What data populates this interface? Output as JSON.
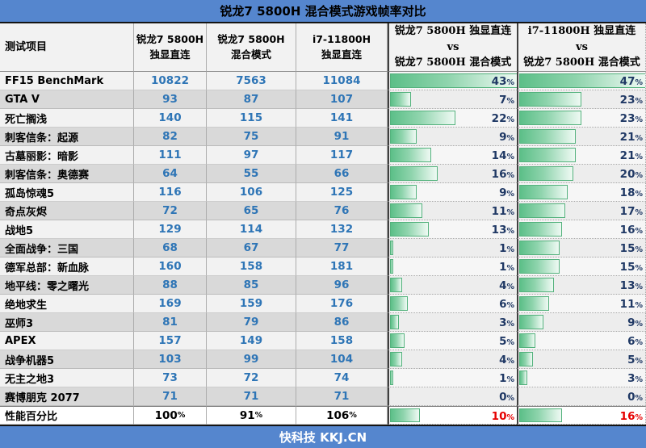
{
  "title": "锐龙7 5800H 混合模式游戏帧率对比",
  "footer": "快科技 KKJ.CN",
  "columns": [
    {
      "label": "测试项目"
    },
    {
      "label": "锐龙7 5800H\n独显直连"
    },
    {
      "label": "锐龙7 5800H\n混合模式"
    },
    {
      "label": "i7-11800H\n独显直连"
    },
    {
      "label": "锐龙7 5800H 独显直连\nvs\n锐龙7 5800H 混合模式"
    },
    {
      "label": "i7-11800H 独显直连\nvs\n锐龙7 5800H 混合模式"
    }
  ],
  "bar_scale": {
    "vs1_max": 43,
    "vs2_max": 47
  },
  "colors": {
    "accent_blue": "#5586CE",
    "value_blue": "#2E75B6",
    "percent_navy": "#1F3864",
    "percent_red": "#E60000",
    "bar_green": "#5CBF88",
    "row_alt_gray": "#D9D9D9"
  },
  "chart_data": {
    "type": "table",
    "title": "锐龙7 5800H 混合模式游戏帧率对比",
    "columns": [
      "测试项目",
      "锐龙7 5800H 独显直连",
      "锐龙7 5800H 混合模式",
      "i7-11800H 独显直连",
      "锐龙7 5800H 独显直连 vs 锐龙7 5800H 混合模式",
      "i7-11800H 独显直连 vs 锐龙7 5800H 混合模式"
    ],
    "rows": [
      {
        "name": "FF15 BenchMark",
        "direct": 10822,
        "hybrid": 7563,
        "i7": 11084,
        "vs1": 43,
        "vs2": 47
      },
      {
        "name": "GTA V",
        "direct": 93,
        "hybrid": 87,
        "i7": 107,
        "vs1": 7,
        "vs2": 23
      },
      {
        "name": "死亡搁浅",
        "direct": 140,
        "hybrid": 115,
        "i7": 141,
        "vs1": 22,
        "vs2": 23
      },
      {
        "name": "刺客信条：起源",
        "direct": 82,
        "hybrid": 75,
        "i7": 91,
        "vs1": 9,
        "vs2": 21
      },
      {
        "name": "古墓丽影：暗影",
        "direct": 111,
        "hybrid": 97,
        "i7": 117,
        "vs1": 14,
        "vs2": 21
      },
      {
        "name": "刺客信条：奥德赛",
        "direct": 64,
        "hybrid": 55,
        "i7": 66,
        "vs1": 16,
        "vs2": 20
      },
      {
        "name": "孤岛惊魂5",
        "direct": 116,
        "hybrid": 106,
        "i7": 125,
        "vs1": 9,
        "vs2": 18
      },
      {
        "name": "奇点灰烬",
        "direct": 72,
        "hybrid": 65,
        "i7": 76,
        "vs1": 11,
        "vs2": 17
      },
      {
        "name": "战地5",
        "direct": 129,
        "hybrid": 114,
        "i7": 132,
        "vs1": 13,
        "vs2": 16
      },
      {
        "name": "全面战争：三国",
        "direct": 68,
        "hybrid": 67,
        "i7": 77,
        "vs1": 1,
        "vs2": 15
      },
      {
        "name": "德军总部：新血脉",
        "direct": 160,
        "hybrid": 158,
        "i7": 181,
        "vs1": 1,
        "vs2": 15
      },
      {
        "name": "地平线：零之曙光",
        "direct": 88,
        "hybrid": 85,
        "i7": 96,
        "vs1": 4,
        "vs2": 13
      },
      {
        "name": "绝地求生",
        "direct": 169,
        "hybrid": 159,
        "i7": 176,
        "vs1": 6,
        "vs2": 11
      },
      {
        "name": "巫师3",
        "direct": 81,
        "hybrid": 79,
        "i7": 86,
        "vs1": 3,
        "vs2": 9
      },
      {
        "name": "APEX",
        "direct": 157,
        "hybrid": 149,
        "i7": 158,
        "vs1": 5,
        "vs2": 6
      },
      {
        "name": "战争机器5",
        "direct": 103,
        "hybrid": 99,
        "i7": 104,
        "vs1": 4,
        "vs2": 5
      },
      {
        "name": "无主之地3",
        "direct": 73,
        "hybrid": 72,
        "i7": 74,
        "vs1": 1,
        "vs2": 3
      },
      {
        "name": "赛博朋克 2077",
        "direct": 71,
        "hybrid": 71,
        "i7": 71,
        "vs1": 0,
        "vs2": 0
      }
    ],
    "summary": {
      "name": "性能百分比",
      "direct": 100,
      "hybrid": 91,
      "i7": 106,
      "vs1": 10,
      "vs2": 16,
      "value_format": "percent"
    }
  }
}
